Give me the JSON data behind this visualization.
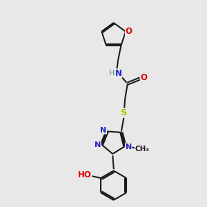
{
  "bg_color": "#e8e8e8",
  "bond_color": "#1a1a1a",
  "bond_width": 1.5,
  "atom_colors": {
    "N": "#2222cc",
    "O": "#dd0000",
    "S": "#bbbb00",
    "H": "#448888",
    "C": "#1a1a1a"
  },
  "fig_bg": "#e8e8e8"
}
